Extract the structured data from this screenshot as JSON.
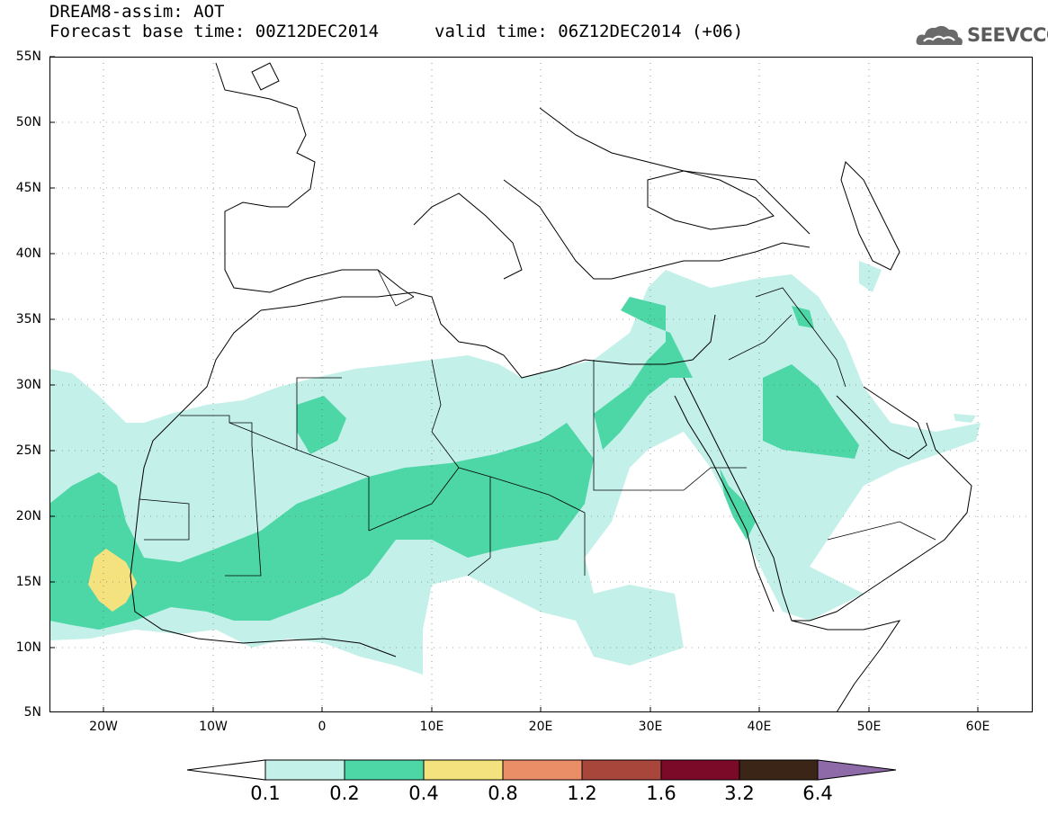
{
  "header": {
    "title": "DREAM8-assim: AOT",
    "subtitle": "Forecast base time: 00Z12DEC2014",
    "valid_time": "valid time: 06Z12DEC2014 (+06)"
  },
  "logo": {
    "text": "SEEVCCC",
    "icon": "cloud-icon"
  },
  "map": {
    "lat_labels": [
      "55N",
      "50N",
      "45N",
      "40N",
      "35N",
      "30N",
      "25N",
      "20N",
      "15N",
      "10N",
      "5N"
    ],
    "lon_labels": [
      "20W",
      "10W",
      "0",
      "10E",
      "20E",
      "30E",
      "40E",
      "50E",
      "60E"
    ],
    "lat_range": [
      5,
      55
    ],
    "lon_range": [
      -25,
      65
    ],
    "grid": "dotted"
  },
  "colorbar": {
    "labels": [
      "0.1",
      "0.2",
      "0.4",
      "0.8",
      "1.2",
      "1.6",
      "3.2",
      "6.4"
    ],
    "colors": [
      "#ffffff",
      "#c4f0ea",
      "#4dd6a6",
      "#f4e27e",
      "#ea8e67",
      "#a8463c",
      "#7a0a27",
      "#3a2516",
      "#8e6aa8"
    ]
  }
}
